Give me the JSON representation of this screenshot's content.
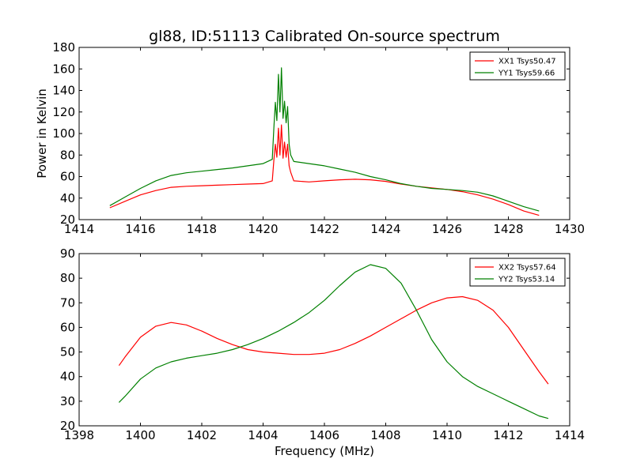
{
  "figure": {
    "title": "gl88, ID:51113 Calibrated On-source spectrum",
    "ylabel": "Power in Kelvin",
    "xlabel": "Frequency (MHz)"
  },
  "chart_data": [
    {
      "type": "line",
      "xlim": [
        1414,
        1430
      ],
      "ylim": [
        20,
        180
      ],
      "xticks": [
        1414,
        1416,
        1418,
        1420,
        1422,
        1424,
        1426,
        1428,
        1430
      ],
      "yticks": [
        20,
        40,
        60,
        80,
        100,
        120,
        140,
        160,
        180
      ],
      "grid": false,
      "legend_position": "top-right",
      "series": [
        {
          "name": "XX1 Tsys50.47",
          "color": "#ff0000",
          "x": [
            1415.0,
            1415.5,
            1416.0,
            1416.5,
            1417.0,
            1417.5,
            1418.0,
            1418.5,
            1419.0,
            1419.5,
            1420.0,
            1420.3,
            1420.35,
            1420.4,
            1420.45,
            1420.5,
            1420.55,
            1420.6,
            1420.65,
            1420.7,
            1420.75,
            1420.8,
            1420.85,
            1420.9,
            1421.0,
            1421.5,
            1422.0,
            1422.5,
            1423.0,
            1423.5,
            1424.0,
            1424.5,
            1425.0,
            1425.5,
            1426.0,
            1426.5,
            1427.0,
            1427.5,
            1428.0,
            1428.5,
            1429.0
          ],
          "y": [
            31,
            37,
            43,
            47,
            50,
            51,
            51.5,
            52,
            52.5,
            53,
            53.5,
            56,
            75,
            90,
            78,
            105,
            80,
            108,
            77,
            92,
            78,
            90,
            70,
            64,
            56,
            55,
            56,
            57,
            57.5,
            57,
            55.5,
            53,
            51,
            49.5,
            48,
            46,
            43,
            39,
            34,
            28,
            24
          ]
        },
        {
          "name": "YY1 Tsys59.66",
          "color": "#008000",
          "x": [
            1415.0,
            1415.5,
            1416.0,
            1416.5,
            1417.0,
            1417.5,
            1418.0,
            1418.5,
            1419.0,
            1419.5,
            1420.0,
            1420.3,
            1420.35,
            1420.4,
            1420.45,
            1420.5,
            1420.55,
            1420.6,
            1420.65,
            1420.7,
            1420.75,
            1420.8,
            1420.85,
            1420.9,
            1421.0,
            1421.5,
            1422.0,
            1422.5,
            1423.0,
            1423.5,
            1424.0,
            1424.5,
            1425.0,
            1425.5,
            1426.0,
            1426.5,
            1427.0,
            1427.5,
            1428.0,
            1428.5,
            1429.0
          ],
          "y": [
            33,
            41,
            49,
            56,
            61,
            63.5,
            65,
            66.5,
            68,
            70,
            72,
            76,
            105,
            129,
            112,
            155,
            120,
            161,
            114,
            130,
            110,
            125,
            90,
            80,
            74,
            72,
            70,
            67,
            64,
            60,
            57,
            53.5,
            51,
            49,
            48,
            47,
            45.5,
            42,
            37,
            32,
            28
          ]
        }
      ]
    },
    {
      "type": "line",
      "xlim": [
        1398,
        1414
      ],
      "ylim": [
        20,
        90
      ],
      "xticks": [
        1398,
        1400,
        1402,
        1404,
        1406,
        1408,
        1410,
        1412,
        1414
      ],
      "yticks": [
        20,
        30,
        40,
        50,
        60,
        70,
        80,
        90
      ],
      "grid": false,
      "legend_position": "top-right",
      "series": [
        {
          "name": "XX2 Tsys57.64",
          "color": "#ff0000",
          "x": [
            1399.3,
            1399.5,
            1400.0,
            1400.5,
            1401.0,
            1401.5,
            1402.0,
            1402.5,
            1403.0,
            1403.5,
            1404.0,
            1404.5,
            1405.0,
            1405.5,
            1406.0,
            1406.5,
            1407.0,
            1407.5,
            1408.0,
            1408.5,
            1409.0,
            1409.5,
            1410.0,
            1410.5,
            1411.0,
            1411.5,
            1412.0,
            1412.5,
            1413.0,
            1413.3
          ],
          "y": [
            44.5,
            48,
            56,
            60.5,
            62,
            61,
            58.5,
            55.5,
            53,
            51,
            50,
            49.5,
            49,
            49,
            49.5,
            51,
            53.5,
            56.5,
            60,
            63.5,
            67,
            70,
            72,
            72.5,
            71,
            67,
            60,
            51,
            42,
            37
          ]
        },
        {
          "name": "YY2 Tsys53.14",
          "color": "#008000",
          "x": [
            1399.3,
            1399.5,
            1400.0,
            1400.5,
            1401.0,
            1401.5,
            1402.0,
            1402.5,
            1403.0,
            1403.5,
            1404.0,
            1404.5,
            1405.0,
            1405.5,
            1406.0,
            1406.5,
            1407.0,
            1407.5,
            1408.0,
            1408.5,
            1409.0,
            1409.5,
            1410.0,
            1410.5,
            1411.0,
            1411.5,
            1412.0,
            1412.5,
            1413.0,
            1413.3
          ],
          "y": [
            29.5,
            32,
            39,
            43.5,
            46,
            47.5,
            48.5,
            49.5,
            51,
            53,
            55.5,
            58.5,
            62,
            66,
            71,
            77,
            82.5,
            85.5,
            84,
            78,
            67,
            55,
            46,
            40,
            36,
            33,
            30,
            27,
            24,
            23
          ]
        }
      ]
    }
  ]
}
